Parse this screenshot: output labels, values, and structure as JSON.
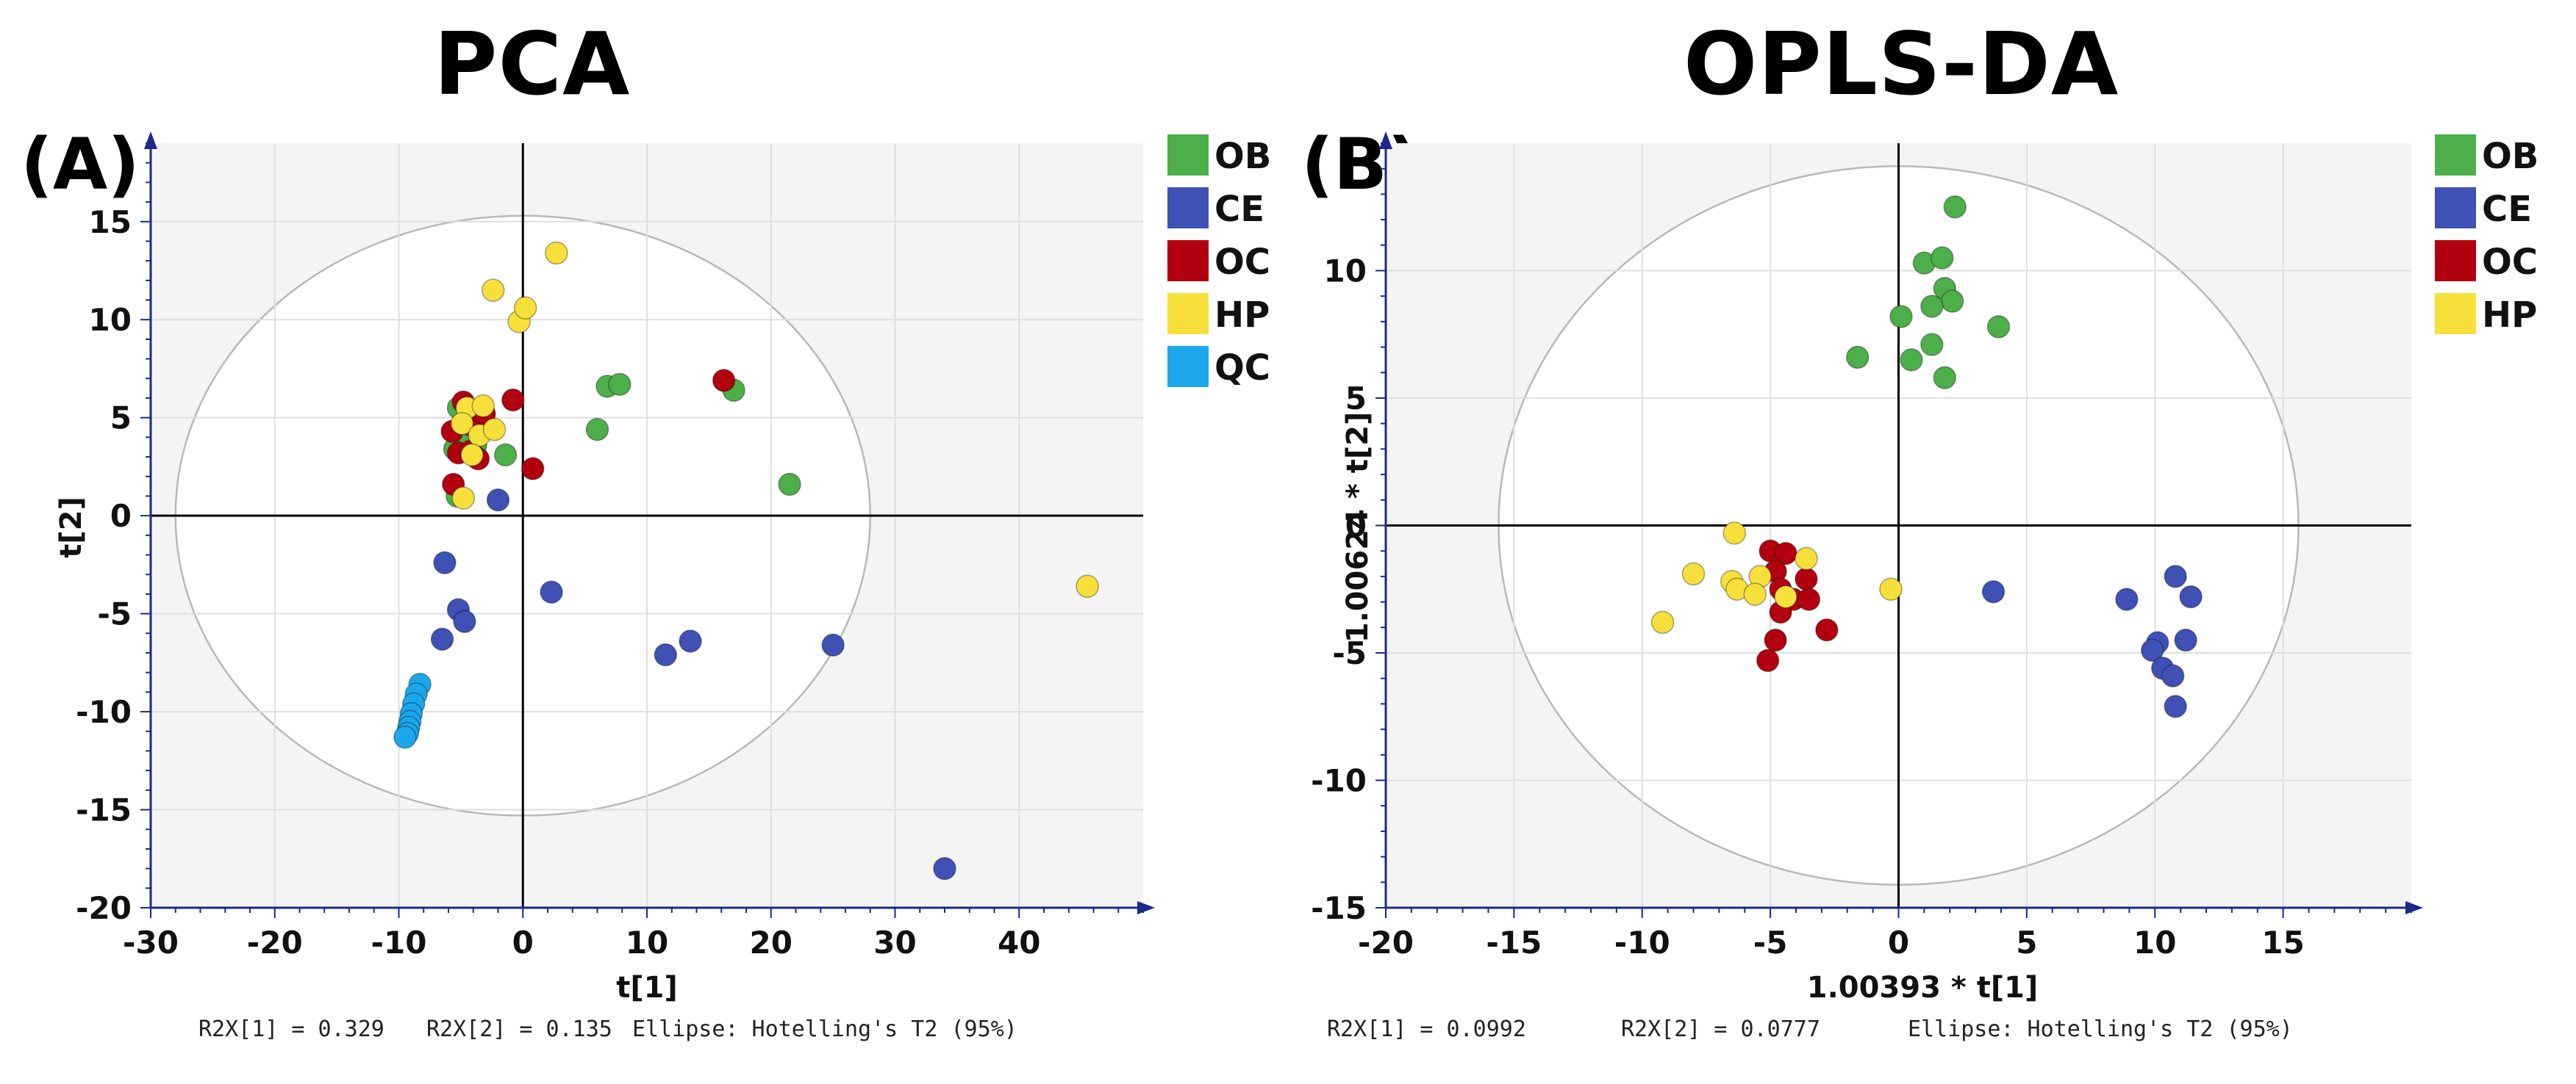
{
  "chart_data": [
    {
      "type": "scatter",
      "title": "PCA",
      "panel_label": "(A)",
      "xlabel": "t[1]",
      "ylabel": "t[2]",
      "xlim": [
        -30,
        50
      ],
      "ylim": [
        -20,
        19
      ],
      "xticks": [
        -30,
        -20,
        -10,
        0,
        10,
        20,
        30,
        40
      ],
      "yticks": [
        -20,
        -15,
        -10,
        -5,
        0,
        5,
        10,
        15
      ],
      "grid": true,
      "legend_position": "right",
      "ellipse": {
        "label": "Ellipse: Hotelling's T2 (95%)",
        "a": 28,
        "b": 15.3
      },
      "footer": [
        "R2X[1] = 0.329",
        "R2X[2] = 0.135",
        "Ellipse: Hotelling's T2 (95%)"
      ],
      "series": [
        {
          "name": "OB",
          "color": "#4daf4a",
          "points": [
            [
              -5.2,
              5.5
            ],
            [
              -5.5,
              3.4
            ],
            [
              -5.3,
              1.0
            ],
            [
              -3.8,
              3.6
            ],
            [
              -1.4,
              3.1
            ],
            [
              6,
              4.4
            ],
            [
              6.8,
              6.6
            ],
            [
              7.8,
              6.7
            ],
            [
              17,
              6.4
            ],
            [
              21.5,
              1.6
            ],
            [
              -4.4,
              4.1
            ]
          ]
        },
        {
          "name": "CE",
          "color": "#3f51b5",
          "points": [
            [
              -2,
              0.8
            ],
            [
              -6.3,
              -2.4
            ],
            [
              -6.5,
              -6.3
            ],
            [
              -5.2,
              -4.8
            ],
            [
              -4.7,
              -5.4
            ],
            [
              2.3,
              -3.9
            ],
            [
              11.5,
              -7.1
            ],
            [
              13.5,
              -6.4
            ],
            [
              25,
              -6.6
            ],
            [
              34,
              -18
            ]
          ]
        },
        {
          "name": "OC",
          "color": "#b2000e",
          "points": [
            [
              -5.7,
              4.3
            ],
            [
              -5.2,
              3.2
            ],
            [
              -4.8,
              5.8
            ],
            [
              -4.1,
              4.6
            ],
            [
              -3.6,
              2.9
            ],
            [
              -4.2,
              3.3
            ],
            [
              -5.6,
              1.6
            ],
            [
              -0.8,
              5.9
            ],
            [
              0.8,
              2.4
            ],
            [
              16.2,
              6.9
            ],
            [
              -3.1,
              5.2
            ]
          ]
        },
        {
          "name": "HP",
          "color": "#f7e03b",
          "points": [
            [
              -2.4,
              11.5
            ],
            [
              -0.3,
              9.9
            ],
            [
              0.2,
              10.6
            ],
            [
              2.7,
              13.4
            ],
            [
              -4.5,
              5.5
            ],
            [
              -3.2,
              5.6
            ],
            [
              -4.9,
              4.7
            ],
            [
              -3.5,
              4.1
            ],
            [
              -2.3,
              4.4
            ],
            [
              -4.1,
              3.1
            ],
            [
              -4.8,
              0.9
            ],
            [
              45.5,
              -3.6
            ]
          ]
        },
        {
          "name": "QC",
          "color": "#1ca7ec",
          "points": [
            [
              -8.3,
              -8.6
            ],
            [
              -8.6,
              -9.1
            ],
            [
              -8.8,
              -9.6
            ],
            [
              -9.0,
              -10.1
            ],
            [
              -9.1,
              -10.5
            ],
            [
              -9.2,
              -10.8
            ],
            [
              -9.3,
              -11.1
            ],
            [
              -9.5,
              -11.3
            ]
          ]
        }
      ]
    },
    {
      "type": "scatter",
      "title": "OPLS-DA",
      "panel_label": "(B)",
      "xlabel": "1.00393 * t[1]",
      "ylabel": "1.00624 * t[2]",
      "xlim": [
        -20,
        20
      ],
      "ylim": [
        -15,
        15
      ],
      "xticks": [
        -20,
        -15,
        -10,
        -5,
        0,
        5,
        10,
        15
      ],
      "yticks": [
        -15,
        -10,
        -5,
        0,
        5,
        10
      ],
      "grid": true,
      "legend_position": "right",
      "ellipse": {
        "label": "Ellipse: Hotelling's T2 (95%)",
        "a": 15.6,
        "b": 14.1
      },
      "footer": [
        "R2X[1] = 0.0992",
        "R2X[2] = 0.0777",
        "Ellipse: Hotelling's T2 (95%)"
      ],
      "series": [
        {
          "name": "OB",
          "color": "#4daf4a",
          "points": [
            [
              2.2,
              12.5
            ],
            [
              1.0,
              10.3
            ],
            [
              1.7,
              10.5
            ],
            [
              1.8,
              9.3
            ],
            [
              2.1,
              8.8
            ],
            [
              1.3,
              8.6
            ],
            [
              0.1,
              8.2
            ],
            [
              3.9,
              7.8
            ],
            [
              1.3,
              7.1
            ],
            [
              0.5,
              6.5
            ],
            [
              -1.6,
              6.6
            ],
            [
              1.8,
              5.8
            ]
          ]
        },
        {
          "name": "CE",
          "color": "#3f51b5",
          "points": [
            [
              3.7,
              -2.6
            ],
            [
              8.9,
              -2.9
            ],
            [
              10.8,
              -2.0
            ],
            [
              11.4,
              -2.8
            ],
            [
              11.2,
              -4.5
            ],
            [
              10.1,
              -4.6
            ],
            [
              9.9,
              -4.9
            ],
            [
              10.3,
              -5.6
            ],
            [
              10.7,
              -5.9
            ],
            [
              10.8,
              -7.1
            ]
          ]
        },
        {
          "name": "OC",
          "color": "#b2000e",
          "points": [
            [
              -5.0,
              -1.0
            ],
            [
              -4.4,
              -1.1
            ],
            [
              -4.8,
              -1.8
            ],
            [
              -4.6,
              -2.5
            ],
            [
              -4.1,
              -2.9
            ],
            [
              -3.6,
              -2.1
            ],
            [
              -3.5,
              -2.9
            ],
            [
              -4.6,
              -3.4
            ],
            [
              -4.8,
              -4.5
            ],
            [
              -2.8,
              -4.1
            ],
            [
              -5.1,
              -5.3
            ]
          ]
        },
        {
          "name": "HP",
          "color": "#f7e03b",
          "points": [
            [
              -6.4,
              -0.3
            ],
            [
              -3.6,
              -1.3
            ],
            [
              -5.4,
              -2.0
            ],
            [
              -8,
              -1.9
            ],
            [
              -6.5,
              -2.2
            ],
            [
              -6.3,
              -2.5
            ],
            [
              -5.6,
              -2.7
            ],
            [
              -4.4,
              -2.8
            ],
            [
              -0.3,
              -2.5
            ],
            [
              -9.2,
              -3.8
            ]
          ]
        }
      ]
    }
  ]
}
